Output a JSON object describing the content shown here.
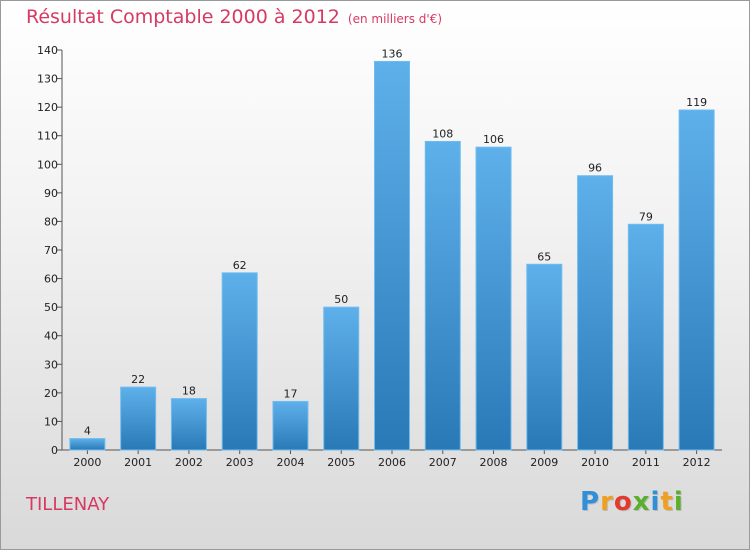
{
  "title": "Résultat Comptable 2000 à 2012",
  "subtitle": "(en milliers d'€)",
  "commune": "TILLENAY",
  "logo": {
    "letters": [
      "P",
      "r",
      "o",
      "x",
      "i",
      "t",
      "i"
    ],
    "colors": [
      "#2f8fd8",
      "#f0a020",
      "#e23b2e",
      "#5ab02e",
      "#2f8fd8",
      "#f0a020",
      "#5ab02e"
    ]
  },
  "colors": {
    "accent": "#d63a63",
    "bar_top": "#5eb0ea",
    "bar_bottom": "#2a79b7"
  },
  "chart_data": {
    "type": "bar",
    "title": "Résultat Comptable 2000 à 2012",
    "ylabel": "en milliers d'€",
    "categories": [
      "2000",
      "2001",
      "2002",
      "2003",
      "2004",
      "2005",
      "2006",
      "2007",
      "2008",
      "2009",
      "2010",
      "2011",
      "2012"
    ],
    "values": [
      4,
      22,
      18,
      62,
      17,
      50,
      136,
      108,
      106,
      65,
      96,
      79,
      119
    ],
    "ylim": [
      0,
      140
    ],
    "yticks": [
      0,
      10,
      20,
      30,
      40,
      50,
      60,
      70,
      80,
      90,
      100,
      110,
      120,
      130,
      140
    ],
    "grid": false,
    "legend": "none"
  }
}
